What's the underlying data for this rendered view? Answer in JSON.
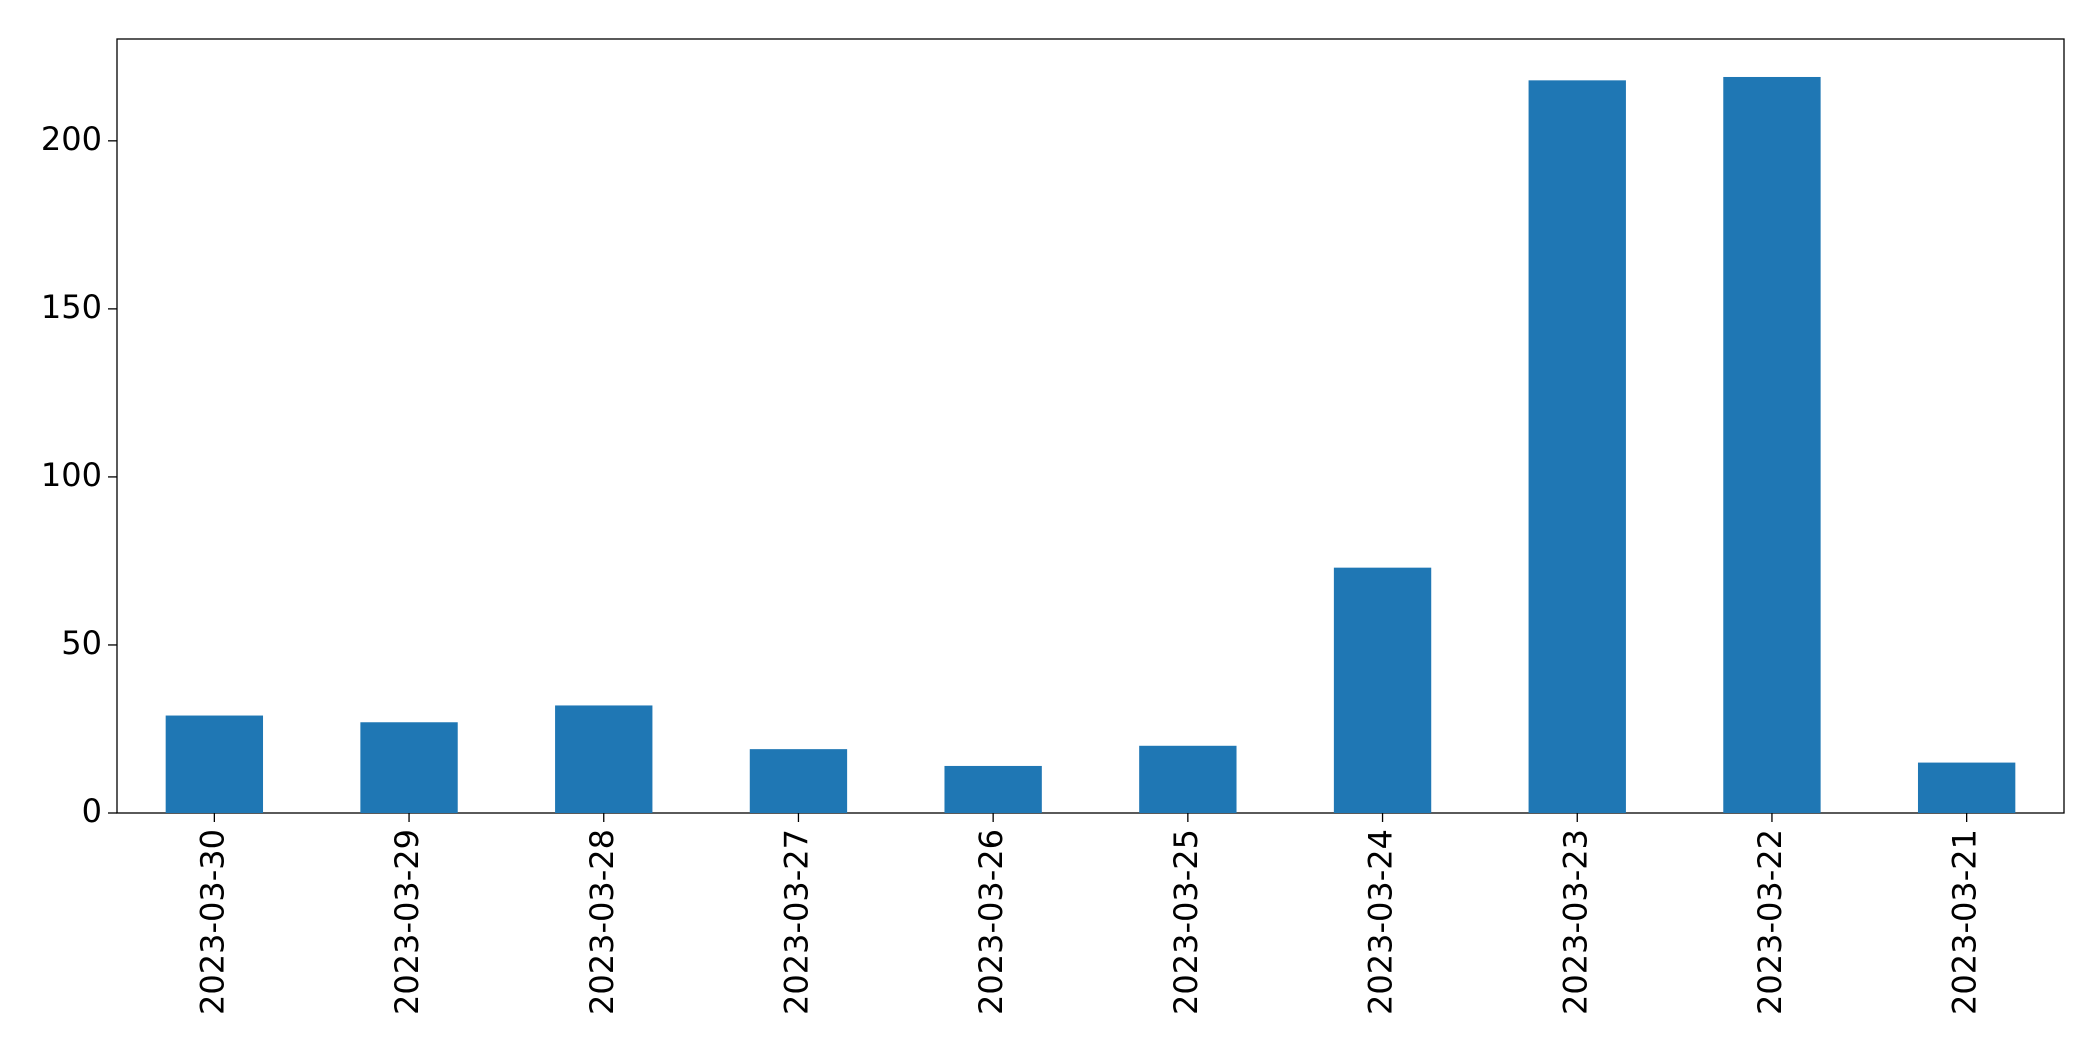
{
  "chart_data": {
    "type": "bar",
    "categories": [
      "2023-03-30",
      "2023-03-29",
      "2023-03-28",
      "2023-03-27",
      "2023-03-26",
      "2023-03-25",
      "2023-03-24",
      "2023-03-23",
      "2023-03-22",
      "2023-03-21"
    ],
    "values": [
      29,
      27,
      32,
      19,
      14,
      20,
      73,
      218,
      219,
      15
    ],
    "color": "#1f77b4",
    "ylim": [
      0,
      230.3
    ],
    "yticks": [
      0,
      50,
      100,
      150,
      200
    ],
    "grid": false
  }
}
